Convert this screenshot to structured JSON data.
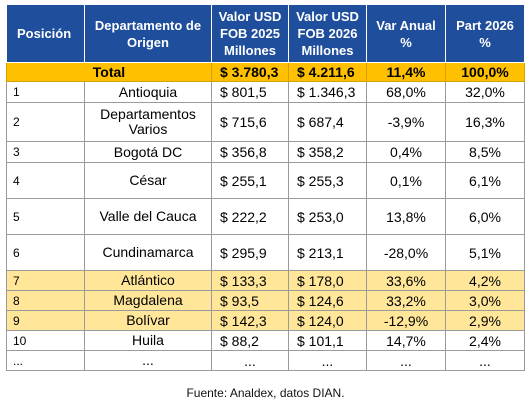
{
  "headers": {
    "position": "Posición",
    "department": "Departamento de Origen",
    "fob_2025": "Valor USD FOB 2025 Millones",
    "fob_2026": "Valor USD FOB 2026 Millones",
    "var": "Var Anual %",
    "part": "Part 2026 %"
  },
  "total": {
    "label": "Total",
    "fob_2025": "$ 3.780,3",
    "fob_2026": "$ 4.211,6",
    "var": "11,4%",
    "part": "100,0%"
  },
  "rows": [
    {
      "pos": "1",
      "dept": "Antioquia",
      "fob_2025": "$ 801,5",
      "fob_2026": "$ 1.346,3",
      "var": "68,0%",
      "part": "32,0%"
    },
    {
      "pos": "2",
      "dept": "Departamentos Varios",
      "fob_2025": "$ 715,6",
      "fob_2026": "$ 687,4",
      "var": "-3,9%",
      "part": "16,3%"
    },
    {
      "pos": "3",
      "dept": "Bogotá DC",
      "fob_2025": "$ 356,8",
      "fob_2026": "$ 358,2",
      "var": "0,4%",
      "part": "8,5%"
    },
    {
      "pos": "4",
      "dept": "César",
      "fob_2025": "$ 255,1",
      "fob_2026": "$ 255,3",
      "var": "0,1%",
      "part": "6,1%"
    },
    {
      "pos": "5",
      "dept": "Valle del Cauca",
      "fob_2025": "$ 222,2",
      "fob_2026": "$ 253,0",
      "var": "13,8%",
      "part": "6,0%"
    },
    {
      "pos": "6",
      "dept": "Cundinamarca",
      "fob_2025": "$ 295,9",
      "fob_2026": "$ 213,1",
      "var": "-28,0%",
      "part": "5,1%"
    },
    {
      "pos": "7",
      "dept": "Atlántico",
      "fob_2025": "$ 133,3",
      "fob_2026": "$ 178,0",
      "var": "33,6%",
      "part": "4,2%"
    },
    {
      "pos": "8",
      "dept": "Magdalena",
      "fob_2025": "$ 93,5",
      "fob_2026": "$ 124,6",
      "var": "33,2%",
      "part": "3,0%"
    },
    {
      "pos": "9",
      "dept": "Bolívar",
      "fob_2025": "$ 142,3",
      "fob_2026": "$ 124,0",
      "var": "-12,9%",
      "part": "2,9%"
    },
    {
      "pos": "10",
      "dept": "Huila",
      "fob_2025": "$ 88,2",
      "fob_2026": "$ 101,1",
      "var": "14,7%",
      "part": "2,4%"
    },
    {
      "pos": "...",
      "dept": "...",
      "fob_2025": "...",
      "fob_2026": "...",
      "var": "...",
      "part": "..."
    }
  ],
  "source": "Fuente: Analdex, datos DIAN.",
  "colors": {
    "header": "#1f4e9c",
    "total": "#ffc000",
    "highlight": "#ffe699"
  }
}
